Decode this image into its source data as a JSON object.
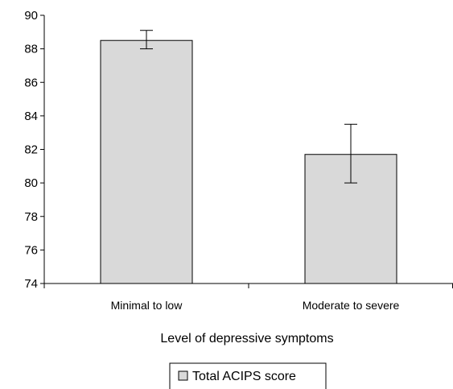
{
  "chart_data": {
    "type": "bar",
    "categories": [
      "Minimal to low",
      "Moderate to severe"
    ],
    "series": [
      {
        "name": "Total ACIPS score",
        "values": [
          88.5,
          81.7
        ],
        "error_low": [
          88.0,
          80.0
        ],
        "error_high": [
          89.1,
          83.5
        ]
      }
    ],
    "xlabel": "Level of depressive symptoms",
    "ylabel": "",
    "ylim": [
      74,
      90
    ],
    "yticks": [
      74,
      76,
      78,
      80,
      82,
      84,
      86,
      88,
      90
    ],
    "grid": false,
    "legend_position": "bottom-center",
    "bar_color": "#d9d9d9",
    "bar_edge_color": "#000000"
  }
}
